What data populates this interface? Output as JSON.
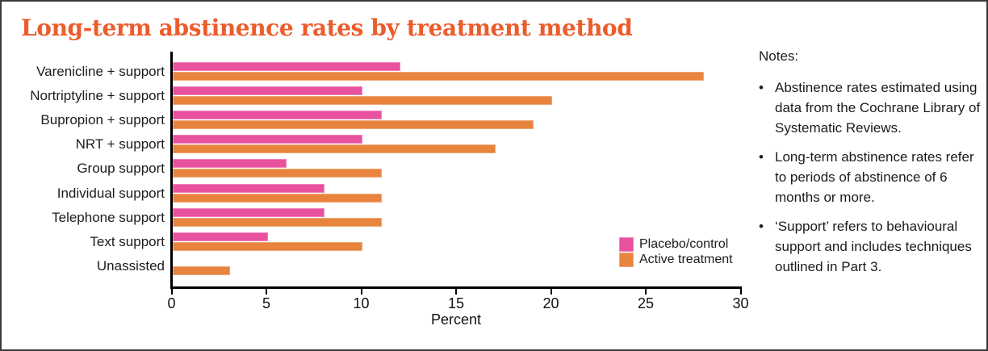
{
  "title": "Long-term abstinence rates by treatment method",
  "chart_data": {
    "type": "bar",
    "orientation": "horizontal",
    "categories": [
      "Varenicline + support",
      "Nortriptyline + support",
      "Bupropion + support",
      "NRT + support",
      "Group support",
      "Individual support",
      "Telephone support",
      "Text support",
      "Unassisted"
    ],
    "series": [
      {
        "name": "Placebo/control",
        "color": "#e8519e",
        "values": [
          12,
          10,
          11,
          10,
          6,
          8,
          8,
          5,
          null
        ]
      },
      {
        "name": "Active treatment",
        "color": "#e8843d",
        "values": [
          28,
          20,
          19,
          17,
          11,
          11,
          11,
          10,
          3
        ]
      }
    ],
    "xlabel": "Percent",
    "xlim": [
      0,
      30
    ],
    "xticks": [
      0,
      5,
      10,
      15,
      20,
      25,
      30
    ],
    "grid": false,
    "legend_position": "inside-right"
  },
  "notes": {
    "heading": "Notes:",
    "bullet_glyph": "•",
    "items": [
      "Abstinence rates estimated using data from the Cochrane Library of Systematic Reviews.",
      "Long-term abstinence rates refer to periods of abstinence of 6 months or more.",
      "‘Support’ refers to behavioural support and includes techniques outlined in Part 3."
    ]
  },
  "colors": {
    "title": "#ec5c2b",
    "placebo": "#e8519e",
    "active": "#e8843d",
    "axis": "#000000",
    "frame_border": "#3a3a3a"
  }
}
